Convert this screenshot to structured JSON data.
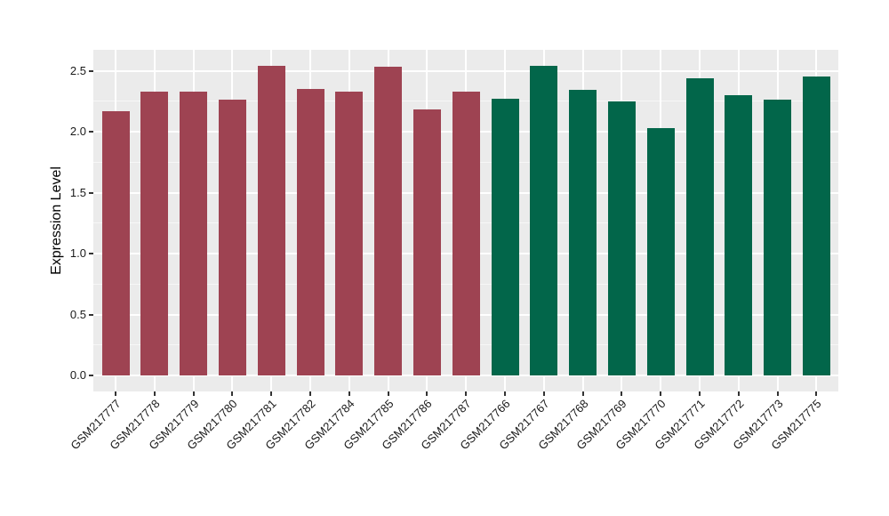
{
  "figure": {
    "background_color": "#FFFFFF",
    "panel_background_color": "#EBEBEB",
    "grid_color": "#FFFFFF",
    "axis_text_color": "#1A1A1A"
  },
  "chart_data": {
    "type": "bar",
    "ylabel": "Expression Level",
    "xlabel": "",
    "ylim": [
      0,
      2.67
    ],
    "yticks": [
      0,
      0.5,
      1,
      1.5,
      2,
      2.5
    ],
    "ytick_labels": [
      "0.0",
      "0.5",
      "1.0",
      "1.5",
      "2.0",
      "2.5"
    ],
    "grid": "on",
    "legend_position": "none",
    "categories": [
      "GSM217777",
      "GSM217778",
      "GSM217779",
      "GSM217780",
      "GSM217781",
      "GSM217782",
      "GSM217784",
      "GSM217785",
      "GSM217786",
      "GSM217787",
      "GSM217766",
      "GSM217767",
      "GSM217768",
      "GSM217769",
      "GSM217770",
      "GSM217771",
      "GSM217772",
      "GSM217773",
      "GSM217775"
    ],
    "series": [
      {
        "color": "#9E4352",
        "categories": [
          "GSM217777",
          "GSM217778",
          "GSM217779",
          "GSM217780",
          "GSM217781",
          "GSM217782",
          "GSM217784",
          "GSM217785",
          "GSM217786",
          "GSM217787"
        ],
        "values": [
          2.17,
          2.33,
          2.33,
          2.26,
          2.54,
          2.35,
          2.33,
          2.53,
          2.18,
          2.33
        ]
      },
      {
        "color": "#02664A",
        "categories": [
          "GSM217766",
          "GSM217767",
          "GSM217768",
          "GSM217769",
          "GSM217770",
          "GSM217771",
          "GSM217772",
          "GSM217773",
          "GSM217775"
        ],
        "values": [
          2.27,
          2.54,
          2.34,
          2.25,
          2.03,
          2.44,
          2.3,
          2.26,
          2.45
        ]
      }
    ]
  }
}
